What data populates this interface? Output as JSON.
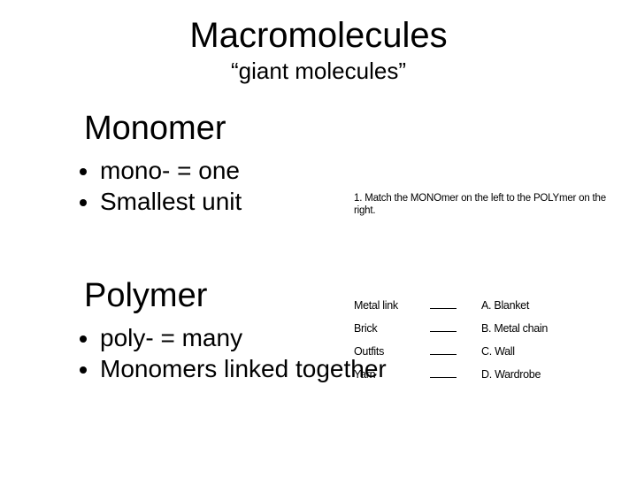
{
  "colors": {
    "background": "#ffffff",
    "text": "#000000"
  },
  "title": "Macromolecules",
  "subtitle": "“giant molecules”",
  "sections": [
    {
      "heading": "Monomer",
      "bullets": [
        "mono- = one",
        "Smallest unit"
      ]
    },
    {
      "heading": "Polymer",
      "bullets": [
        "poly- = many",
        "Monomers linked together"
      ]
    }
  ],
  "worksheet": {
    "instruction_number": "1.",
    "instruction_text": "Match the MONOmer on the left to the POLYmer on the right.",
    "left_items": [
      "Metal link",
      "Brick",
      "Outfits",
      "Yarn"
    ],
    "right_items": [
      {
        "letter": "A.",
        "text": "Blanket"
      },
      {
        "letter": "B.",
        "text": "Metal chain"
      },
      {
        "letter": "C.",
        "text": "Wall"
      },
      {
        "letter": "D.",
        "text": "Wardrobe"
      }
    ]
  },
  "typography": {
    "title_fontsize": 40,
    "subtitle_fontsize": 26,
    "heading_fontsize": 38,
    "bullet_fontsize": 28,
    "worksheet_instruction_fontsize": 11.5,
    "worksheet_item_fontsize": 12.5
  }
}
